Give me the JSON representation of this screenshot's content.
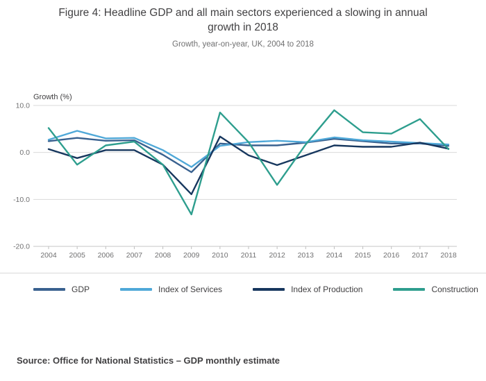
{
  "header": {
    "title": "Figure 4: Headline GDP and all main sectors experienced a slowing in annual growth in 2018",
    "subtitle": "Growth, year-on-year, UK, 2004 to 2018"
  },
  "chart_data": {
    "type": "line",
    "x": [
      2004,
      2005,
      2006,
      2007,
      2008,
      2009,
      2010,
      2011,
      2012,
      2013,
      2014,
      2015,
      2016,
      2017,
      2018
    ],
    "ylabel": "Growth (%)",
    "ylim": [
      -20,
      10
    ],
    "yticks": [
      10.0,
      0.0,
      -10.0,
      -20.0
    ],
    "grid": "horizontal",
    "legend_position": "bottom",
    "series": [
      {
        "name": "GDP",
        "color": "#39618f",
        "values": [
          2.4,
          3.1,
          2.5,
          2.6,
          -0.5,
          -4.2,
          1.9,
          1.5,
          1.5,
          2.1,
          2.9,
          2.4,
          1.9,
          1.9,
          1.4
        ]
      },
      {
        "name": "Index of Services",
        "color": "#4fa8d8",
        "values": [
          2.7,
          4.6,
          3.0,
          3.1,
          0.5,
          -3.1,
          1.4,
          2.2,
          2.5,
          2.2,
          3.2,
          2.6,
          2.3,
          2.0,
          1.7
        ]
      },
      {
        "name": "Index of Production",
        "color": "#17375e",
        "values": [
          0.7,
          -1.2,
          0.5,
          0.5,
          -2.6,
          -8.9,
          3.4,
          -0.6,
          -2.7,
          -0.6,
          1.5,
          1.2,
          1.2,
          2.1,
          0.8
        ]
      },
      {
        "name": "Construction",
        "color": "#2e9e8e",
        "values": [
          5.2,
          -2.6,
          1.5,
          2.3,
          -2.6,
          -13.2,
          8.5,
          2.2,
          -6.9,
          1.7,
          9.0,
          4.3,
          4.0,
          7.1,
          0.7
        ]
      }
    ],
    "source": "Source: Office for National Statistics – GDP monthly estimate"
  }
}
